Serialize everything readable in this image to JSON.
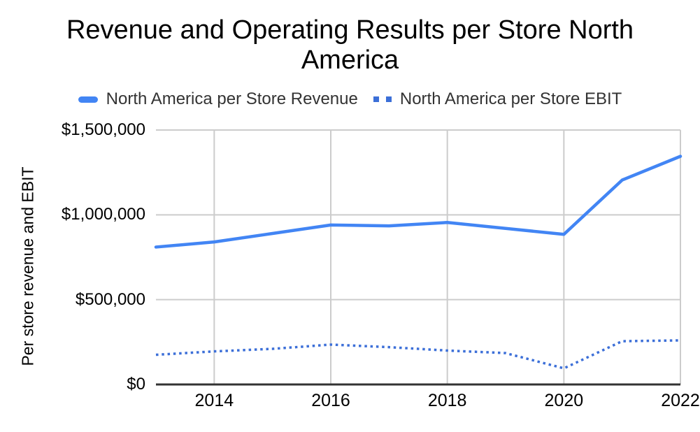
{
  "title": "Revenue and Operating Results per Store North America",
  "y_axis_title": "Per store revenue and EBIT",
  "legend": [
    {
      "label": "North America per Store Revenue",
      "style": "solid"
    },
    {
      "label": "North America per Store EBIT",
      "style": "dotted"
    }
  ],
  "colors": {
    "revenue_line": "#4285f4",
    "ebit_line": "#3c6fd8",
    "gridline": "#cccccc",
    "axis_line": "#333333",
    "title_text": "#000000",
    "tick_text": "#000000",
    "legend_text": "#333333",
    "background": "#ffffff"
  },
  "chart_data": {
    "type": "line",
    "title": "Revenue and Operating Results per Store North America",
    "xlabel": "",
    "ylabel": "Per store revenue and EBIT",
    "grid": true,
    "legend_position": "top",
    "xlim": [
      2013,
      2022
    ],
    "ylim": [
      0,
      1500000
    ],
    "x": [
      2013,
      2014,
      2015,
      2016,
      2017,
      2018,
      2019,
      2020,
      2021,
      2022
    ],
    "x_ticks": [
      2014,
      2016,
      2018,
      2020,
      2022
    ],
    "y_ticks": [
      {
        "value": 0,
        "label": "$0"
      },
      {
        "value": 500000,
        "label": "$500,000"
      },
      {
        "value": 1000000,
        "label": "$1,000,000"
      },
      {
        "value": 1500000,
        "label": "$1,500,000"
      }
    ],
    "series": [
      {
        "name": "North America per Store Revenue",
        "style": "solid",
        "color": "#4285f4",
        "values": [
          810000,
          840000,
          890000,
          940000,
          935000,
          955000,
          920000,
          885000,
          1205000,
          1345000
        ]
      },
      {
        "name": "North America per Store EBIT",
        "style": "dotted",
        "color": "#3c6fd8",
        "values": [
          175000,
          195000,
          210000,
          235000,
          220000,
          200000,
          185000,
          95000,
          255000,
          260000
        ]
      }
    ]
  }
}
